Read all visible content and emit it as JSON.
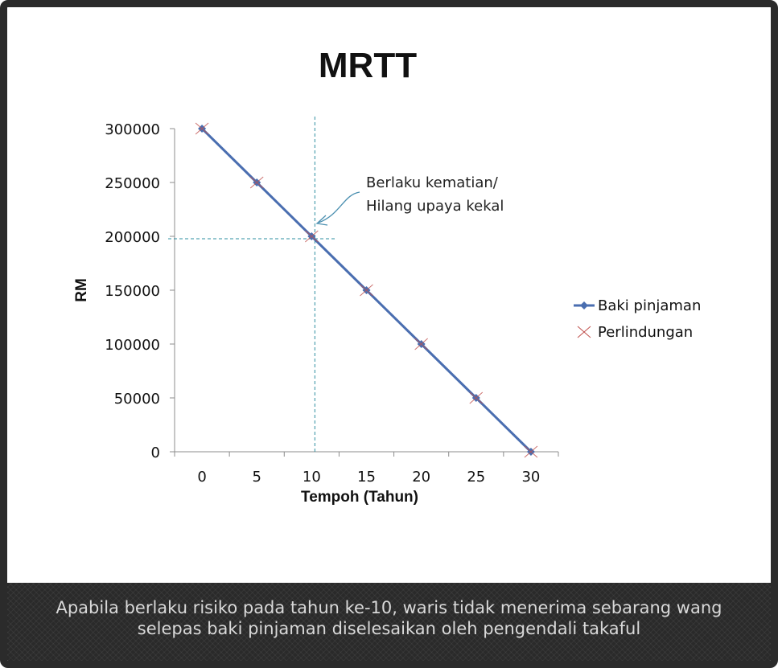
{
  "chart_data": {
    "type": "line",
    "title": "MRTT",
    "xlabel": "Tempoh (Tahun)",
    "ylabel": "RM",
    "x": [
      0,
      5,
      10,
      15,
      20,
      25,
      30
    ],
    "xlim": [
      0,
      30
    ],
    "ylim": [
      0,
      300000
    ],
    "x_ticks": [
      "0",
      "5",
      "10",
      "15",
      "20",
      "25",
      "30"
    ],
    "y_ticks": [
      "0",
      "50000",
      "100000",
      "150000",
      "200000",
      "250000",
      "300000"
    ],
    "series": [
      {
        "name": "Baki pinjaman",
        "values": [
          300000,
          250000,
          200000,
          150000,
          100000,
          50000,
          0
        ],
        "color": "#4a6eb0",
        "marker": "diamond"
      },
      {
        "name": "Perlindungan",
        "values": [
          300000,
          250000,
          200000,
          150000,
          100000,
          50000,
          0
        ],
        "color": "#c0504d",
        "marker": "x"
      }
    ],
    "legend_position": "right",
    "grid": false,
    "annotation": {
      "lines": [
        "Berlaku kematian/",
        "Hilang upaya kekal"
      ],
      "x": 10,
      "y": 200000,
      "guide_color": "#2e8fa0"
    }
  },
  "caption": {
    "line1": "Apabila berlaku risiko pada tahun ke-10, waris tidak menerima sebarang wang",
    "line2": "selepas baki pinjaman diselesaikan oleh pengendali takaful"
  }
}
